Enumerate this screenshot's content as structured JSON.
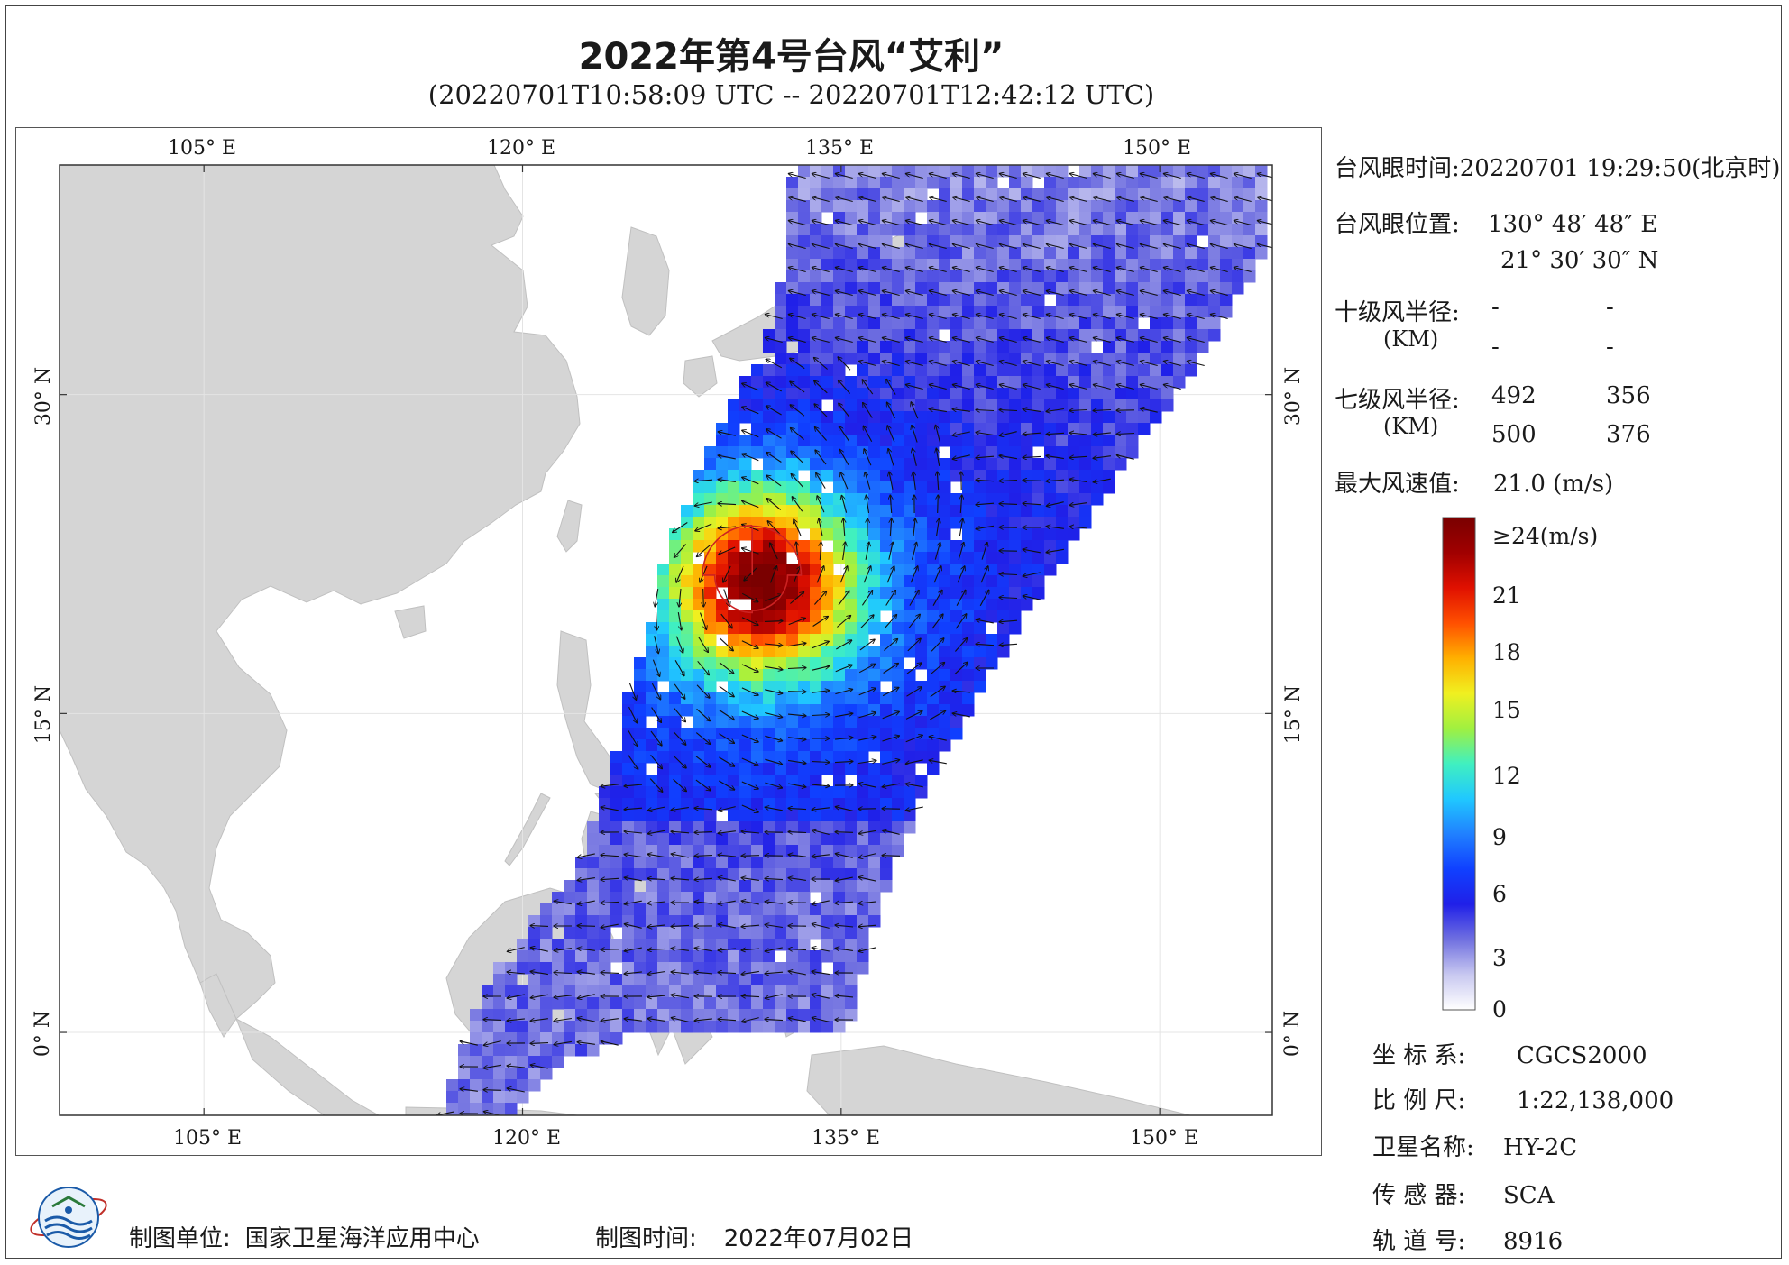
{
  "title": "2022年第4号台风“艾利”",
  "subtitle": "(20220701T10:58:09 UTC -- 20220701T12:42:12 UTC)",
  "map": {
    "lon_labels": [
      "105° E",
      "120° E",
      "135° E",
      "150° E"
    ],
    "lat_labels": [
      "30° N",
      "15° N",
      "0° N"
    ],
    "colors": {
      "land": "#d5d5d5",
      "sea": "#ffffff",
      "grid": "#e6e6e6",
      "radius_line": "#cc2222",
      "arrow": "#111111"
    },
    "typhoon_center": {
      "lon": 130.813,
      "lat": 21.508
    }
  },
  "info": {
    "eye_time_label": "台风眼时间:",
    "eye_time_value": "20220701 19:29:50(北京时)",
    "eye_pos_label": "台风眼位置:",
    "eye_lon": "130° 48′ 48″ E",
    "eye_lat": "21° 30′ 30″ N",
    "r10_label": "十级风半径:",
    "r10_unit": "(KM)",
    "r10_values": [
      "-",
      "-",
      "-",
      "-"
    ],
    "r7_label": "七级风半径:",
    "r7_unit": "(KM)",
    "r7_values": [
      "492",
      "356",
      "500",
      "376"
    ],
    "max_wind_label": "最大风速值:",
    "max_wind_value": "21.0 (m/s)"
  },
  "colorbar": {
    "ticks": [
      "≥24(m/s)",
      "21",
      "18",
      "15",
      "12",
      "9",
      "6",
      "3",
      "0"
    ],
    "stops": [
      "#ffffff",
      "#c8c8f0",
      "#7070e0",
      "#2020e8",
      "#1040ff",
      "#2080ff",
      "#20c8ff",
      "#40f0c0",
      "#a0f040",
      "#f0f020",
      "#ffb000",
      "#ff5000",
      "#e01000",
      "#a00000",
      "#7a0000"
    ]
  },
  "meta": {
    "crs_label": "坐 标 系:",
    "crs_value": "CGCS2000",
    "scale_label": "比 例 尺:",
    "scale_value": "1:22,138,000",
    "sat_label": "卫星名称:",
    "sat_value": "HY-2C",
    "sensor_label": "传 感 器:",
    "sensor_value": "SCA",
    "orbit_label": "轨 道 号:",
    "orbit_value": "8916"
  },
  "footer": {
    "org_label": "制图单位:",
    "org_value": "国家卫星海洋应用中心",
    "date_label": "制图时间:",
    "date_value": "2022年07月02日"
  }
}
